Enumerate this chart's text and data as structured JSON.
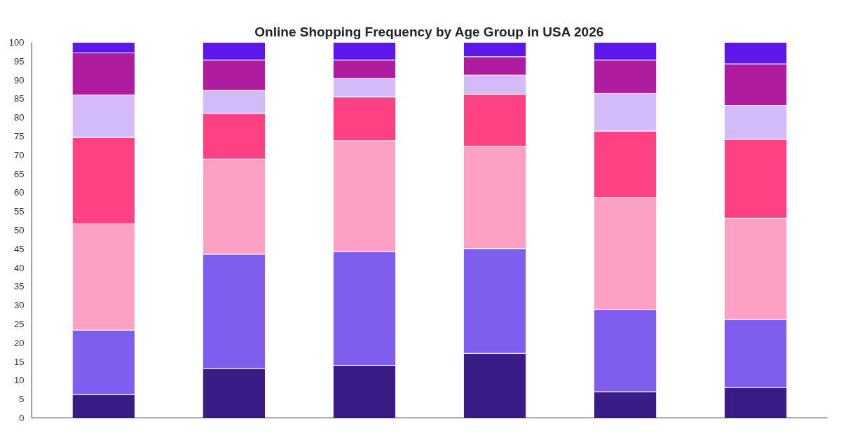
{
  "chart_data": {
    "type": "bar",
    "title": "Online Shopping Frequency by Age Group in USA 2026",
    "stacked": true,
    "categories": [
      null,
      null,
      null,
      null,
      null,
      null
    ],
    "series": [
      {
        "color": "#3a1c87",
        "values": [
          6.2,
          13.2,
          14.0,
          17.2,
          7.0,
          8.1
        ]
      },
      {
        "color": "#7f5eee",
        "values": [
          17.2,
          30.4,
          30.3,
          27.9,
          21.9,
          18.1
        ]
      },
      {
        "color": "#fca1c4",
        "values": [
          28.3,
          25.3,
          29.5,
          27.2,
          29.8,
          27.0
        ]
      },
      {
        "color": "#fe4183",
        "values": [
          23.0,
          12.2,
          11.7,
          13.9,
          17.7,
          21.0
        ]
      },
      {
        "color": "#d3bbfa",
        "values": [
          11.3,
          6.1,
          4.9,
          5.1,
          10.0,
          9.0
        ]
      },
      {
        "color": "#b01c9f",
        "values": [
          11.2,
          8.1,
          4.9,
          4.9,
          8.9,
          11.1
        ]
      },
      {
        "color": "#5e17eb",
        "values": [
          2.8,
          4.7,
          4.7,
          3.8,
          4.7,
          5.7
        ]
      }
    ],
    "ylim": [
      0,
      100
    ],
    "yticks": [
      0,
      5,
      10,
      15,
      20,
      25,
      30,
      35,
      40,
      45,
      50,
      55,
      60,
      65,
      70,
      75,
      80,
      85,
      90,
      95,
      100
    ],
    "grid": false
  }
}
